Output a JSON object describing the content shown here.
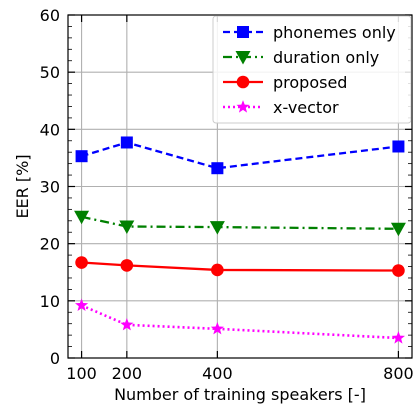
{
  "chart_data": {
    "type": "line",
    "title": "",
    "xlabel": "Number of training speakers [-]",
    "ylabel": "EER [%]",
    "xlim": [
      70,
      830
    ],
    "ylim": [
      0,
      60
    ],
    "x_ticks": [
      100,
      200,
      400,
      800
    ],
    "y_ticks": [
      0,
      10,
      20,
      30,
      40,
      50,
      60
    ],
    "y_minor_step": 2,
    "grid": true,
    "legend_position": "top-right",
    "x": [
      100,
      200,
      400,
      800
    ],
    "series": [
      {
        "name": "phonemes only",
        "values": [
          35.3,
          37.7,
          33.2,
          37.0
        ],
        "color": "#0000ff",
        "marker": "square",
        "line_style": "dashed"
      },
      {
        "name": "duration only",
        "values": [
          24.7,
          23.0,
          22.9,
          22.6
        ],
        "color": "#008000",
        "marker": "triangle-down",
        "line_style": "dashdot"
      },
      {
        "name": "proposed",
        "values": [
          16.7,
          16.2,
          15.4,
          15.3
        ],
        "color": "#ff0000",
        "marker": "circle",
        "line_style": "solid"
      },
      {
        "name": "x-vector",
        "values": [
          9.2,
          5.8,
          5.1,
          3.5
        ],
        "color": "#ff00ff",
        "marker": "star",
        "line_style": "dotted"
      }
    ]
  }
}
